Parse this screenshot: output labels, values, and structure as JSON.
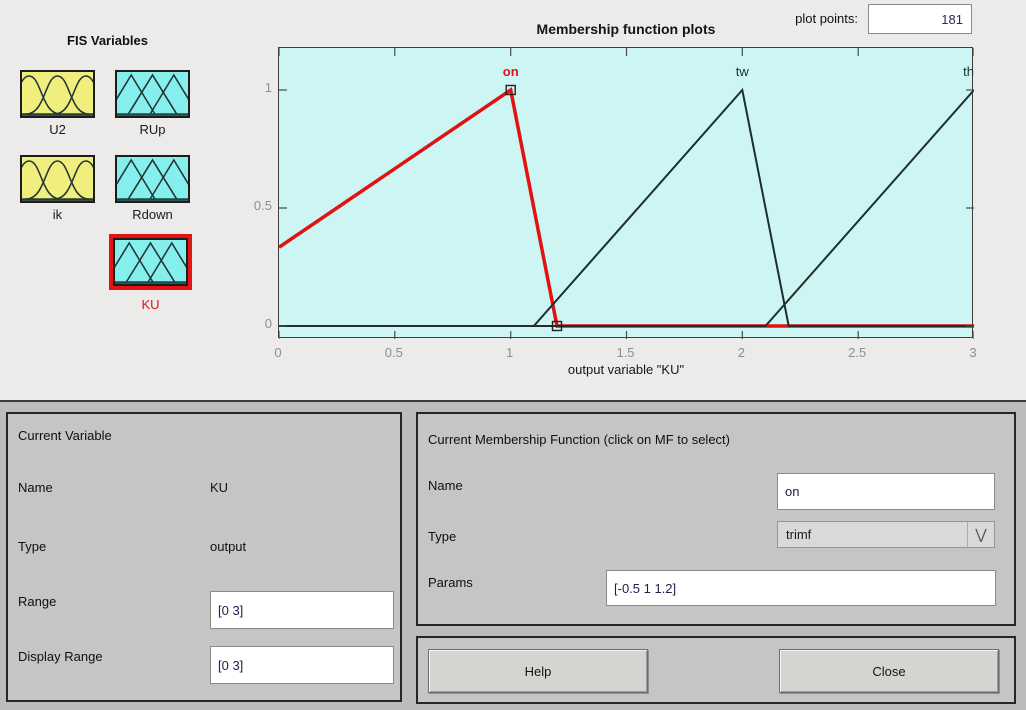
{
  "header": {
    "plot_points_label": "plot points:",
    "plot_points_value": "181"
  },
  "fis_panel": {
    "title": "FIS Variables",
    "variables": [
      {
        "name": "U2",
        "shape": "gauss",
        "color": "#f0ee7d",
        "selected": false
      },
      {
        "name": "RUp",
        "shape": "tri",
        "color": "#84efec",
        "selected": false
      },
      {
        "name": "ik",
        "shape": "gauss",
        "color": "#f0ee7d",
        "selected": false
      },
      {
        "name": "Rdown",
        "shape": "tri",
        "color": "#84efec",
        "selected": false
      },
      {
        "name": "KU",
        "shape": "tri",
        "color": "#84efec",
        "selected": true
      }
    ]
  },
  "chart_data": {
    "type": "line",
    "title": "Membership function plots",
    "xlabel": "output variable \"KU\"",
    "ylabel": "",
    "xlim": [
      0,
      3
    ],
    "ylim": [
      0,
      1
    ],
    "xticks": [
      0,
      0.5,
      1,
      1.5,
      2,
      2.5,
      3
    ],
    "yticks": [
      0,
      0.5,
      1
    ],
    "grid": false,
    "plot_bg": "#cdf5f3",
    "series": [
      {
        "name": "on",
        "mf_type": "trimf",
        "params": [
          -0.5,
          1,
          1.2
        ],
        "selected": true,
        "color": "#e01212",
        "width": 3.5,
        "points": [
          [
            0,
            0.3333
          ],
          [
            1,
            1
          ],
          [
            1.2,
            0
          ],
          [
            3,
            0
          ]
        ],
        "markers": [
          [
            1,
            1
          ],
          [
            1.2,
            0
          ]
        ],
        "label_x": 1
      },
      {
        "name": "tw",
        "selected": false,
        "color": "#1d2e2c",
        "width": 2,
        "points": [
          [
            0,
            0
          ],
          [
            1.1,
            0
          ],
          [
            2,
            1
          ],
          [
            2.2,
            0
          ],
          [
            3,
            0
          ]
        ],
        "markers": [],
        "label_x": 2
      },
      {
        "name": "th",
        "selected": false,
        "color": "#1d2e2c",
        "width": 2,
        "points": [
          [
            0,
            0
          ],
          [
            2.1,
            0
          ],
          [
            3,
            1
          ]
        ],
        "markers": [],
        "label_x": 3
      }
    ]
  },
  "current_variable": {
    "title": "Current Variable",
    "name_label": "Name",
    "name_value": "KU",
    "type_label": "Type",
    "type_value": "output",
    "range_label": "Range",
    "range_value": "[0 3]",
    "display_range_label": "Display Range",
    "display_range_value": "[0 3]"
  },
  "current_mf": {
    "title": "Current Membership Function (click on MF to select)",
    "name_label": "Name",
    "name_value": "on",
    "type_label": "Type",
    "type_value": "trimf",
    "params_label": "Params",
    "params_value": "[-0.5 1 1.2]"
  },
  "buttons": {
    "help": "Help",
    "close": "Close"
  },
  "colors": {
    "selected_red": "#e31414",
    "plot_background": "#cdf5f3",
    "input_var_yellow": "#f0ee7d",
    "output_var_cyan": "#84efec",
    "panel_gray": "#c5c5c5"
  }
}
